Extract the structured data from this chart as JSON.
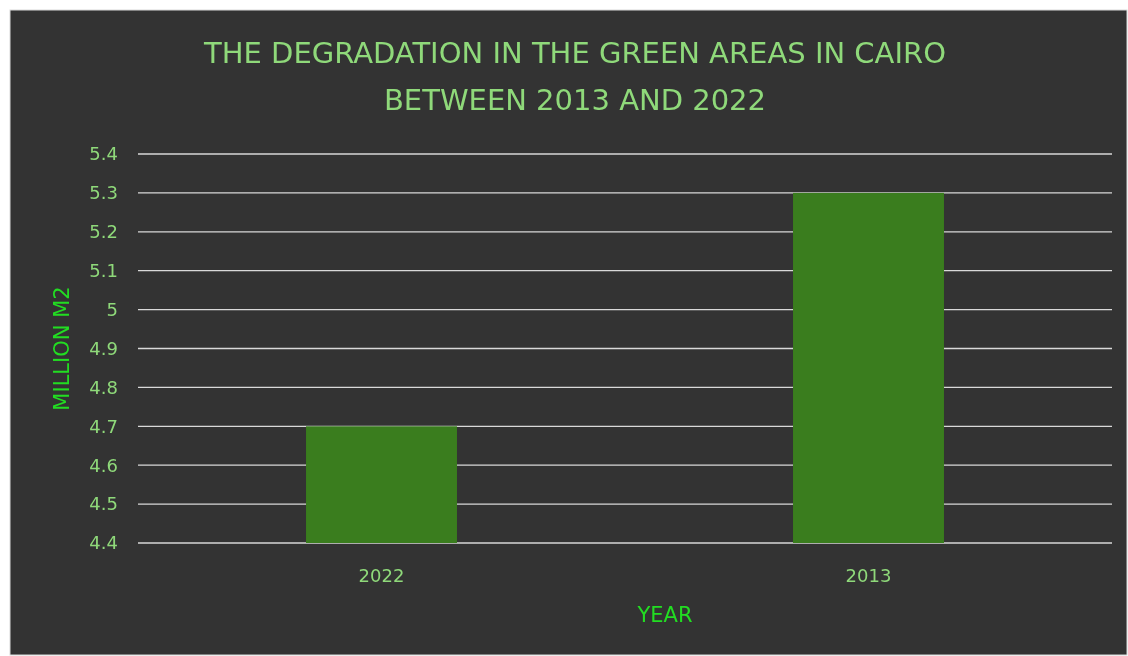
{
  "chart_data": {
    "type": "bar",
    "title": "THE DEGRADATION IN THE GREEN AREAS IN CAIRO BETWEEN 2013 AND 2022",
    "xlabel": "YEAR",
    "ylabel": "MILLION M2",
    "categories": [
      "2022",
      "2013"
    ],
    "values": [
      4.7,
      5.3
    ],
    "color": "#3a7d1e",
    "ylim": [
      4.4,
      5.4
    ],
    "yticks": [
      4.4,
      4.5,
      4.6,
      4.7,
      4.8,
      4.9,
      5,
      5.1,
      5.2,
      5.3,
      5.4
    ],
    "grid": "y"
  }
}
